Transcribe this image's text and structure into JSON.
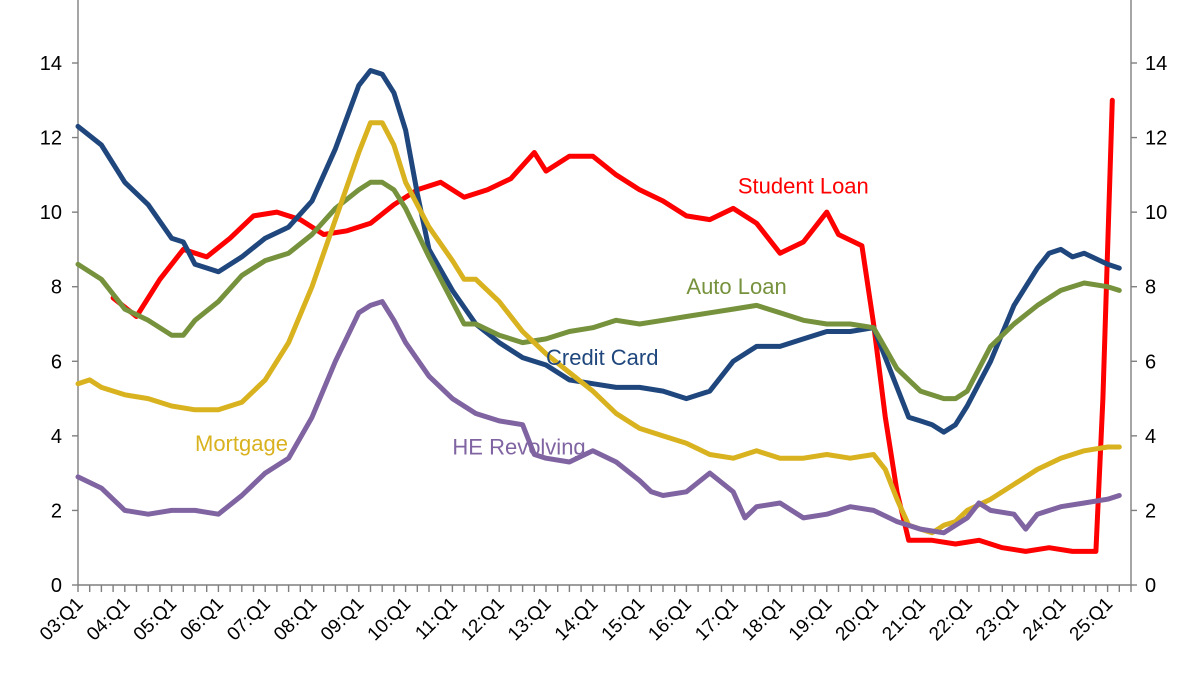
{
  "chart_data": {
    "type": "line",
    "title": "",
    "xlabel": "",
    "ylabel": "",
    "ylim": [
      0,
      15
    ],
    "yticks": [
      0,
      2,
      4,
      6,
      8,
      10,
      12,
      14
    ],
    "xtick_labels": [
      "03:Q1",
      "04:Q1",
      "05:Q1",
      "06:Q1",
      "07:Q1",
      "08:Q1",
      "09:Q1",
      "10:Q1",
      "11:Q1",
      "12:Q1",
      "13:Q1",
      "14:Q1",
      "15:Q1",
      "16:Q1",
      "17:Q1",
      "18:Q1",
      "19:Q1",
      "20:Q1",
      "21:Q1",
      "22:Q1",
      "23:Q1",
      "24:Q1",
      "25:Q1"
    ],
    "x_start": 2003.0,
    "x_end": 2025.5,
    "x_step": 0.25,
    "legend": "inline labels",
    "series": [
      {
        "name": "Student Loan",
        "color": "#ff0000",
        "label_anchor_x": 2017.1,
        "label_anchor_y": 10.5,
        "keypoints": [
          [
            2003.75,
            7.7
          ],
          [
            2004.25,
            7.2
          ],
          [
            2004.75,
            8.2
          ],
          [
            2005.25,
            9.0
          ],
          [
            2005.75,
            8.8
          ],
          [
            2006.25,
            9.3
          ],
          [
            2006.75,
            9.9
          ],
          [
            2007.25,
            10.0
          ],
          [
            2007.75,
            9.8
          ],
          [
            2008.25,
            9.4
          ],
          [
            2008.75,
            9.5
          ],
          [
            2009.25,
            9.7
          ],
          [
            2009.75,
            10.2
          ],
          [
            2010.25,
            10.6
          ],
          [
            2010.75,
            10.8
          ],
          [
            2011.25,
            10.4
          ],
          [
            2011.75,
            10.6
          ],
          [
            2012.25,
            10.9
          ],
          [
            2012.75,
            11.6
          ],
          [
            2013.0,
            11.1
          ],
          [
            2013.5,
            11.5
          ],
          [
            2014.0,
            11.5
          ],
          [
            2014.5,
            11.0
          ],
          [
            2015.0,
            10.6
          ],
          [
            2015.5,
            10.3
          ],
          [
            2016.0,
            9.9
          ],
          [
            2016.5,
            9.8
          ],
          [
            2017.0,
            10.1
          ],
          [
            2017.5,
            9.7
          ],
          [
            2018.0,
            8.9
          ],
          [
            2018.5,
            9.2
          ],
          [
            2019.0,
            10.0
          ],
          [
            2019.25,
            9.4
          ],
          [
            2019.75,
            9.1
          ],
          [
            2020.0,
            7.0
          ],
          [
            2020.25,
            4.5
          ],
          [
            2020.5,
            2.5
          ],
          [
            2020.75,
            1.2
          ],
          [
            2021.25,
            1.2
          ],
          [
            2021.75,
            1.1
          ],
          [
            2022.25,
            1.2
          ],
          [
            2022.75,
            1.0
          ],
          [
            2023.25,
            0.9
          ],
          [
            2023.75,
            1.0
          ],
          [
            2024.25,
            0.9
          ],
          [
            2024.75,
            0.9
          ],
          [
            2024.9,
            5.0
          ],
          [
            2025.0,
            9.0
          ],
          [
            2025.1,
            13.0
          ]
        ]
      },
      {
        "name": "Credit Card",
        "color": "#1f477d",
        "label_anchor_x": 2013.0,
        "label_anchor_y": 5.9,
        "keypoints": [
          [
            2003.0,
            12.3
          ],
          [
            2003.5,
            11.8
          ],
          [
            2004.0,
            10.8
          ],
          [
            2004.5,
            10.2
          ],
          [
            2005.0,
            9.3
          ],
          [
            2005.25,
            9.2
          ],
          [
            2005.5,
            8.6
          ],
          [
            2006.0,
            8.4
          ],
          [
            2006.5,
            8.8
          ],
          [
            2007.0,
            9.3
          ],
          [
            2007.5,
            9.6
          ],
          [
            2008.0,
            10.3
          ],
          [
            2008.5,
            11.7
          ],
          [
            2009.0,
            13.4
          ],
          [
            2009.25,
            13.8
          ],
          [
            2009.5,
            13.7
          ],
          [
            2009.75,
            13.2
          ],
          [
            2010.0,
            12.2
          ],
          [
            2010.25,
            10.5
          ],
          [
            2010.5,
            9.0
          ],
          [
            2011.0,
            7.9
          ],
          [
            2011.5,
            7.0
          ],
          [
            2012.0,
            6.5
          ],
          [
            2012.5,
            6.1
          ],
          [
            2013.0,
            5.9
          ],
          [
            2013.5,
            5.5
          ],
          [
            2014.0,
            5.4
          ],
          [
            2014.5,
            5.3
          ],
          [
            2015.0,
            5.3
          ],
          [
            2015.5,
            5.2
          ],
          [
            2016.0,
            5.0
          ],
          [
            2016.5,
            5.2
          ],
          [
            2017.0,
            6.0
          ],
          [
            2017.5,
            6.4
          ],
          [
            2018.0,
            6.4
          ],
          [
            2018.5,
            6.6
          ],
          [
            2019.0,
            6.8
          ],
          [
            2019.5,
            6.8
          ],
          [
            2020.0,
            6.9
          ],
          [
            2020.5,
            5.3
          ],
          [
            2020.75,
            4.5
          ],
          [
            2021.0,
            4.4
          ],
          [
            2021.25,
            4.3
          ],
          [
            2021.5,
            4.1
          ],
          [
            2021.75,
            4.3
          ],
          [
            2022.0,
            4.8
          ],
          [
            2022.5,
            6.0
          ],
          [
            2023.0,
            7.5
          ],
          [
            2023.5,
            8.5
          ],
          [
            2023.75,
            8.9
          ],
          [
            2024.0,
            9.0
          ],
          [
            2024.25,
            8.8
          ],
          [
            2024.5,
            8.9
          ],
          [
            2025.0,
            8.6
          ],
          [
            2025.25,
            8.5
          ]
        ]
      },
      {
        "name": "Auto Loan",
        "color": "#76923c",
        "label_anchor_x": 2016.0,
        "label_anchor_y": 7.8,
        "keypoints": [
          [
            2003.0,
            8.6
          ],
          [
            2003.5,
            8.2
          ],
          [
            2004.0,
            7.4
          ],
          [
            2004.5,
            7.1
          ],
          [
            2005.0,
            6.7
          ],
          [
            2005.25,
            6.7
          ],
          [
            2005.5,
            7.1
          ],
          [
            2006.0,
            7.6
          ],
          [
            2006.5,
            8.3
          ],
          [
            2007.0,
            8.7
          ],
          [
            2007.5,
            8.9
          ],
          [
            2008.0,
            9.4
          ],
          [
            2008.5,
            10.1
          ],
          [
            2009.0,
            10.6
          ],
          [
            2009.25,
            10.8
          ],
          [
            2009.5,
            10.8
          ],
          [
            2009.75,
            10.6
          ],
          [
            2010.0,
            10.1
          ],
          [
            2010.5,
            8.8
          ],
          [
            2011.0,
            7.6
          ],
          [
            2011.25,
            7.0
          ],
          [
            2011.5,
            7.0
          ],
          [
            2012.0,
            6.7
          ],
          [
            2012.5,
            6.5
          ],
          [
            2013.0,
            6.6
          ],
          [
            2013.5,
            6.8
          ],
          [
            2014.0,
            6.9
          ],
          [
            2014.5,
            7.1
          ],
          [
            2015.0,
            7.0
          ],
          [
            2015.5,
            7.1
          ],
          [
            2016.0,
            7.2
          ],
          [
            2016.5,
            7.3
          ],
          [
            2017.0,
            7.4
          ],
          [
            2017.5,
            7.5
          ],
          [
            2018.0,
            7.3
          ],
          [
            2018.5,
            7.1
          ],
          [
            2019.0,
            7.0
          ],
          [
            2019.5,
            7.0
          ],
          [
            2020.0,
            6.9
          ],
          [
            2020.5,
            5.8
          ],
          [
            2021.0,
            5.2
          ],
          [
            2021.5,
            5.0
          ],
          [
            2021.75,
            5.0
          ],
          [
            2022.0,
            5.2
          ],
          [
            2022.5,
            6.4
          ],
          [
            2023.0,
            7.0
          ],
          [
            2023.5,
            7.5
          ],
          [
            2024.0,
            7.9
          ],
          [
            2024.5,
            8.1
          ],
          [
            2025.0,
            8.0
          ],
          [
            2025.25,
            7.9
          ]
        ]
      },
      {
        "name": "Mortgage",
        "color": "#d9b21f",
        "label_anchor_x": 2005.5,
        "label_anchor_y": 3.6,
        "keypoints": [
          [
            2003.0,
            5.4
          ],
          [
            2003.25,
            5.5
          ],
          [
            2003.5,
            5.3
          ],
          [
            2004.0,
            5.1
          ],
          [
            2004.5,
            5.0
          ],
          [
            2005.0,
            4.8
          ],
          [
            2005.5,
            4.7
          ],
          [
            2006.0,
            4.7
          ],
          [
            2006.5,
            4.9
          ],
          [
            2007.0,
            5.5
          ],
          [
            2007.5,
            6.5
          ],
          [
            2008.0,
            8.0
          ],
          [
            2008.5,
            9.8
          ],
          [
            2009.0,
            11.6
          ],
          [
            2009.25,
            12.4
          ],
          [
            2009.5,
            12.4
          ],
          [
            2009.75,
            11.8
          ],
          [
            2010.0,
            10.8
          ],
          [
            2010.5,
            9.6
          ],
          [
            2011.0,
            8.7
          ],
          [
            2011.25,
            8.2
          ],
          [
            2011.5,
            8.2
          ],
          [
            2012.0,
            7.6
          ],
          [
            2012.5,
            6.8
          ],
          [
            2013.0,
            6.2
          ],
          [
            2013.5,
            5.7
          ],
          [
            2014.0,
            5.2
          ],
          [
            2014.5,
            4.6
          ],
          [
            2015.0,
            4.2
          ],
          [
            2015.5,
            4.0
          ],
          [
            2016.0,
            3.8
          ],
          [
            2016.5,
            3.5
          ],
          [
            2017.0,
            3.4
          ],
          [
            2017.5,
            3.6
          ],
          [
            2018.0,
            3.4
          ],
          [
            2018.5,
            3.4
          ],
          [
            2019.0,
            3.5
          ],
          [
            2019.5,
            3.4
          ],
          [
            2020.0,
            3.5
          ],
          [
            2020.25,
            3.1
          ],
          [
            2020.5,
            2.3
          ],
          [
            2020.75,
            1.6
          ],
          [
            2021.0,
            1.5
          ],
          [
            2021.25,
            1.4
          ],
          [
            2021.5,
            1.6
          ],
          [
            2021.75,
            1.7
          ],
          [
            2022.0,
            2.0
          ],
          [
            2022.5,
            2.3
          ],
          [
            2023.0,
            2.7
          ],
          [
            2023.5,
            3.1
          ],
          [
            2024.0,
            3.4
          ],
          [
            2024.5,
            3.6
          ],
          [
            2025.0,
            3.7
          ],
          [
            2025.25,
            3.7
          ]
        ]
      },
      {
        "name": "HE Revolving",
        "color": "#8064a2",
        "label_anchor_x": 2011.0,
        "label_anchor_y": 3.5,
        "keypoints": [
          [
            2003.0,
            2.9
          ],
          [
            2003.5,
            2.6
          ],
          [
            2004.0,
            2.0
          ],
          [
            2004.5,
            1.9
          ],
          [
            2005.0,
            2.0
          ],
          [
            2005.5,
            2.0
          ],
          [
            2006.0,
            1.9
          ],
          [
            2006.5,
            2.4
          ],
          [
            2007.0,
            3.0
          ],
          [
            2007.5,
            3.4
          ],
          [
            2008.0,
            4.5
          ],
          [
            2008.5,
            6.0
          ],
          [
            2009.0,
            7.3
          ],
          [
            2009.25,
            7.5
          ],
          [
            2009.5,
            7.6
          ],
          [
            2009.75,
            7.1
          ],
          [
            2010.0,
            6.5
          ],
          [
            2010.5,
            5.6
          ],
          [
            2011.0,
            5.0
          ],
          [
            2011.5,
            4.6
          ],
          [
            2012.0,
            4.4
          ],
          [
            2012.5,
            4.3
          ],
          [
            2012.75,
            3.5
          ],
          [
            2013.0,
            3.4
          ],
          [
            2013.5,
            3.3
          ],
          [
            2014.0,
            3.6
          ],
          [
            2014.5,
            3.3
          ],
          [
            2015.0,
            2.8
          ],
          [
            2015.25,
            2.5
          ],
          [
            2015.5,
            2.4
          ],
          [
            2016.0,
            2.5
          ],
          [
            2016.5,
            3.0
          ],
          [
            2017.0,
            2.5
          ],
          [
            2017.25,
            1.8
          ],
          [
            2017.5,
            2.1
          ],
          [
            2018.0,
            2.2
          ],
          [
            2018.5,
            1.8
          ],
          [
            2019.0,
            1.9
          ],
          [
            2019.5,
            2.1
          ],
          [
            2020.0,
            2.0
          ],
          [
            2020.5,
            1.7
          ],
          [
            2021.0,
            1.5
          ],
          [
            2021.5,
            1.4
          ],
          [
            2022.0,
            1.8
          ],
          [
            2022.25,
            2.2
          ],
          [
            2022.5,
            2.0
          ],
          [
            2023.0,
            1.9
          ],
          [
            2023.25,
            1.5
          ],
          [
            2023.5,
            1.9
          ],
          [
            2024.0,
            2.1
          ],
          [
            2024.5,
            2.2
          ],
          [
            2025.0,
            2.3
          ],
          [
            2025.25,
            2.4
          ]
        ]
      }
    ]
  }
}
